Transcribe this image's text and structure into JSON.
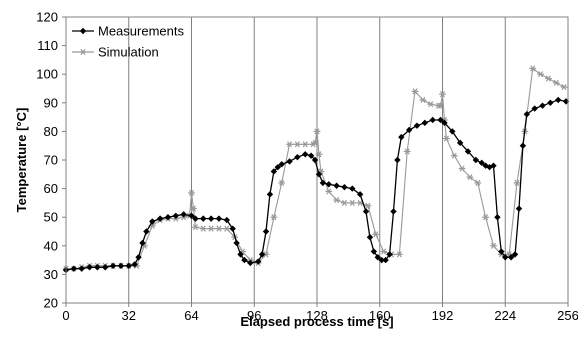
{
  "chart_data": {
    "type": "line",
    "xlabel": "Elapsed process time [s]",
    "ylabel": "Temperature [°C]",
    "xlim": [
      0,
      256
    ],
    "ylim": [
      20,
      120
    ],
    "xticks": [
      0,
      32,
      64,
      96,
      128,
      160,
      192,
      224,
      256
    ],
    "yticks": [
      20,
      30,
      40,
      50,
      60,
      70,
      80,
      90,
      100,
      110,
      120
    ],
    "x_gridlines": [
      32,
      64,
      96,
      128,
      160,
      192,
      224
    ],
    "legend_position": "top-left",
    "series": [
      {
        "name": "Measurements",
        "color": "#000000",
        "marker": "diamond",
        "x": [
          0,
          4,
          8,
          12,
          16,
          20,
          24,
          28,
          32,
          35,
          37,
          39,
          41,
          44,
          48,
          52,
          56,
          60,
          64,
          66,
          70,
          74,
          78,
          82,
          85,
          87,
          89,
          91,
          94,
          98,
          100,
          102,
          104,
          106,
          108,
          110,
          114,
          118,
          122,
          125,
          127,
          129,
          131,
          134,
          138,
          142,
          146,
          150,
          153,
          155,
          157,
          159,
          161,
          163,
          165,
          167,
          169,
          171,
          175,
          179,
          183,
          187,
          191,
          193,
          197,
          201,
          205,
          209,
          212,
          214,
          216,
          218,
          220,
          222,
          224,
          227,
          229,
          231,
          233,
          235,
          239,
          243,
          247,
          251,
          255
        ],
        "y": [
          31.5,
          32,
          32,
          32.5,
          32.5,
          32.5,
          33,
          33,
          33,
          33.5,
          36,
          41,
          45,
          48.5,
          49.5,
          50,
          50.5,
          51,
          50.5,
          49.5,
          49.5,
          49.5,
          49.5,
          49,
          46,
          41,
          37,
          35,
          34,
          34.5,
          37,
          45,
          58,
          66,
          67.5,
          68.5,
          69.5,
          71,
          72,
          71.5,
          70,
          65,
          62,
          61.5,
          61,
          60.5,
          60,
          58,
          52,
          43,
          38,
          36,
          35,
          35,
          37,
          52,
          70,
          78,
          80.5,
          82,
          83,
          84,
          84,
          83,
          80,
          76,
          73,
          70,
          69,
          68,
          67.5,
          68,
          50,
          38,
          36,
          36,
          37,
          53,
          75,
          86,
          88,
          89,
          90,
          91,
          90.5
        ]
      },
      {
        "name": "Simulation",
        "color": "#999999",
        "marker": "star",
        "x": [
          0,
          4,
          8,
          12,
          16,
          20,
          24,
          28,
          32,
          36,
          40,
          44,
          48,
          52,
          56,
          60,
          63,
          64,
          65,
          66,
          70,
          74,
          78,
          82,
          86,
          90,
          94,
          98,
          102,
          106,
          110,
          114,
          118,
          122,
          126,
          127,
          128,
          129,
          130,
          134,
          138,
          142,
          146,
          150,
          154,
          158,
          162,
          166,
          170,
          174,
          178,
          182,
          186,
          190,
          191,
          192,
          193,
          194,
          198,
          202,
          206,
          210,
          214,
          218,
          222,
          226,
          230,
          234,
          238,
          242,
          246,
          250,
          254
        ],
        "y": [
          32,
          32,
          32.5,
          33,
          33,
          33,
          33,
          33,
          33,
          33,
          40,
          47,
          49,
          49.5,
          49.5,
          50,
          50.5,
          58.5,
          53,
          46.5,
          46,
          46,
          46,
          46,
          43,
          38,
          35,
          34,
          37,
          50,
          62,
          75.5,
          75.5,
          75.5,
          75.5,
          76,
          80,
          72,
          66,
          59,
          56,
          55,
          55,
          55,
          54,
          44,
          38,
          37,
          37,
          73,
          94,
          91,
          89.5,
          89,
          89,
          93,
          84,
          77.5,
          71.5,
          67,
          64,
          62,
          50,
          40,
          37,
          37,
          62,
          80,
          102,
          100,
          98.5,
          97,
          95.5
        ]
      }
    ]
  }
}
